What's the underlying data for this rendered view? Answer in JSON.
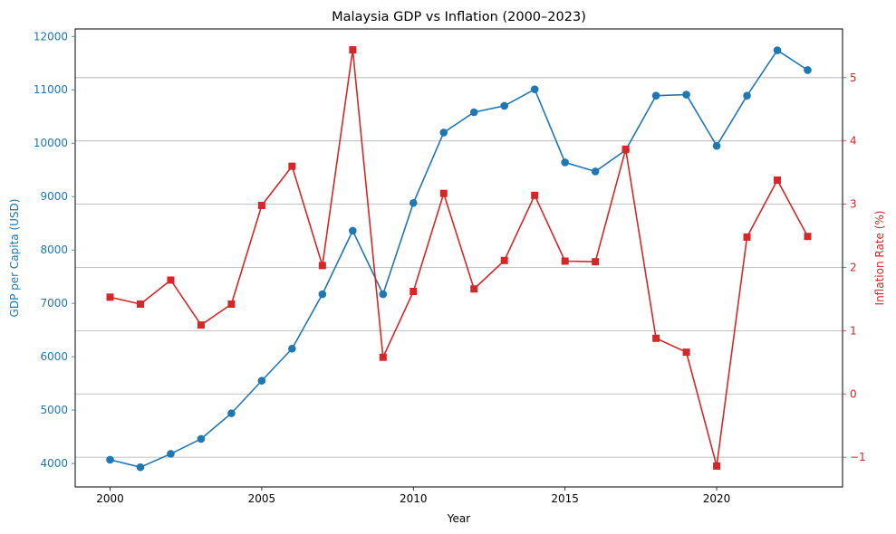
{
  "chart_data": {
    "type": "line",
    "title": "Malaysia GDP vs Inflation (2000–2023)",
    "xlabel": "Year",
    "ylabel_left": "GDP per Capita (USD)",
    "ylabel_right": "Inflation Rate (%)",
    "x": [
      2000,
      2001,
      2002,
      2003,
      2004,
      2005,
      2006,
      2007,
      2008,
      2009,
      2010,
      2011,
      2012,
      2013,
      2014,
      2015,
      2016,
      2017,
      2018,
      2019,
      2020,
      2021,
      2022,
      2023
    ],
    "x_ticks": [
      2000,
      2005,
      2010,
      2015,
      2020
    ],
    "xlim": [
      1998.85,
      2024.15
    ],
    "series": [
      {
        "name": "GDP per Capita (USD)",
        "axis": "left",
        "color": "#1f77b4",
        "marker": "circle",
        "values": [
          4070,
          3930,
          4180,
          4460,
          4940,
          5550,
          6150,
          7170,
          8360,
          7170,
          8880,
          10200,
          10580,
          10700,
          11010,
          9640,
          9470,
          9870,
          10890,
          10910,
          9950,
          10890,
          11740,
          11370
        ]
      },
      {
        "name": "Inflation Rate (%)",
        "axis": "right",
        "color": "#d62728",
        "marker": "square",
        "values": [
          1.53,
          1.42,
          1.8,
          1.09,
          1.42,
          2.98,
          3.6,
          2.03,
          5.44,
          0.58,
          1.62,
          3.17,
          1.66,
          2.11,
          3.14,
          2.1,
          2.09,
          3.87,
          0.88,
          0.66,
          -1.14,
          2.48,
          3.38,
          2.49
        ]
      }
    ],
    "ylim_left": [
      3560,
      12140
    ],
    "yticks_left": [
      4000,
      5000,
      6000,
      7000,
      8000,
      9000,
      10000,
      11000,
      12000
    ],
    "ylim_right": [
      -1.47,
      5.77
    ],
    "yticks_right": [
      -1,
      0,
      1,
      2,
      3,
      4,
      5
    ],
    "grid": "horizontal lines at right-axis ticks",
    "legend": "none"
  }
}
